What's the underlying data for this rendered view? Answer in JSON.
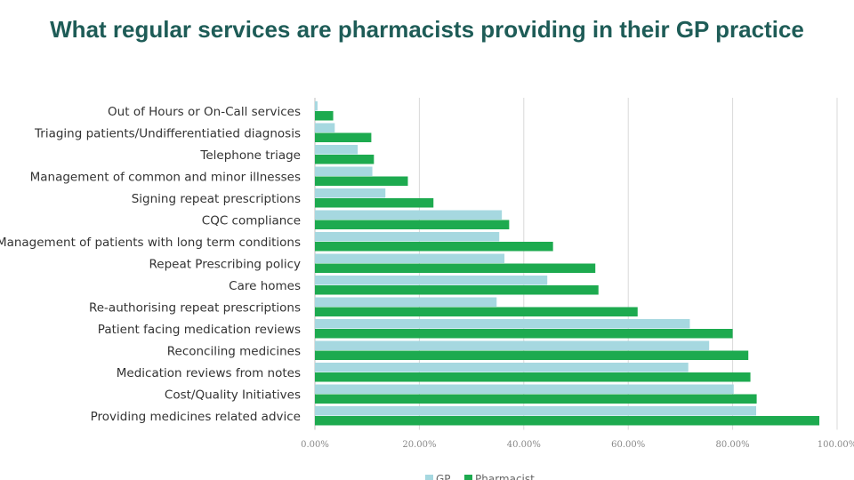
{
  "page": {
    "title": "What regular services are pharmacists providing in their GP practice"
  },
  "colors": {
    "gp": "#a6d8e0",
    "pharmacist": "#1daa4f",
    "title": "#1e5c57",
    "grid": "#d9d9d9"
  },
  "chart_data": {
    "type": "bar",
    "orientation": "horizontal",
    "title": "What regular services are pharmacists providing in their GP practice",
    "categories": [
      "Out of Hours or On-Call services",
      "Triaging patients/Undifferentiatied diagnosis",
      "Telephone triage",
      "Management of common and minor illnesses",
      "Signing repeat prescriptions",
      "CQC compliance",
      "Management of patients with long term conditions",
      "Repeat Prescribing policy",
      "Care homes",
      "Re-authorising repeat prescriptions",
      "Patient facing medication reviews",
      "Reconciling medicines",
      "Medication reviews from notes",
      "Cost/Quality Initiatives",
      "Providing medicines related advice"
    ],
    "series": [
      {
        "name": "GP",
        "color": "#a6d8e0",
        "values": [
          0.5,
          3.8,
          8.2,
          11.0,
          13.5,
          35.8,
          35.3,
          36.3,
          44.5,
          34.8,
          71.8,
          75.5,
          71.5,
          80.2,
          84.5
        ]
      },
      {
        "name": "Pharmacist",
        "color": "#1daa4f",
        "values": [
          3.5,
          10.8,
          11.3,
          17.8,
          22.7,
          37.2,
          45.6,
          53.7,
          54.3,
          61.8,
          80.0,
          83.0,
          83.4,
          84.6,
          96.6
        ]
      }
    ],
    "xlim": [
      0,
      100
    ],
    "xticks": [
      "0.00%",
      "20.00%",
      "40.00%",
      "60.00%",
      "80.00%",
      "100.00%"
    ],
    "grid": true,
    "legend_position": "bottom"
  }
}
